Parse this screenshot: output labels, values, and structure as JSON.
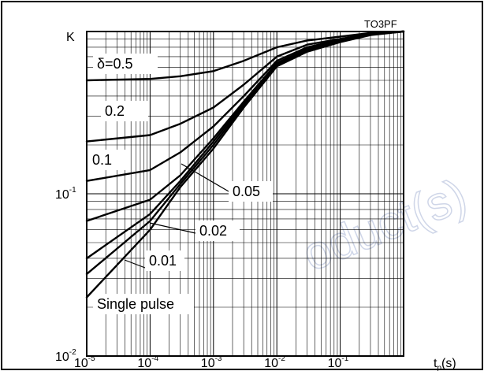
{
  "chart_data": {
    "type": "line",
    "title": "",
    "tag": "TO3PF",
    "ylabel": "K",
    "xlabel_main": "t",
    "xlabel_sub": "p",
    "xlabel_unit": "(s)",
    "x_scale": "log",
    "y_scale": "log",
    "xlim": [
      1e-05,
      1
    ],
    "ylim": [
      0.01,
      1
    ],
    "grid": true,
    "x_ticks": [
      {
        "base": "10",
        "exp": "-5"
      },
      {
        "base": "10",
        "exp": "-4"
      },
      {
        "base": "10",
        "exp": "-3"
      },
      {
        "base": "10",
        "exp": "-2"
      },
      {
        "base": "10",
        "exp": "-1"
      }
    ],
    "y_ticks": [
      {
        "base": "10",
        "exp": "-2"
      },
      {
        "base": "10",
        "exp": "-1"
      }
    ],
    "series": [
      {
        "name": "δ=0.5",
        "x": [
          1e-05,
          0.0001,
          0.0003,
          0.001,
          0.003,
          0.01,
          0.03,
          0.1,
          0.3,
          1
        ],
        "values": [
          0.5,
          0.51,
          0.53,
          0.57,
          0.66,
          0.8,
          0.88,
          0.93,
          0.98,
          1.0
        ]
      },
      {
        "name": "0.2",
        "x": [
          1e-05,
          0.0001,
          0.0003,
          0.001,
          0.003,
          0.01,
          0.03,
          0.1,
          0.3,
          1
        ],
        "values": [
          0.21,
          0.23,
          0.27,
          0.34,
          0.47,
          0.7,
          0.83,
          0.9,
          0.97,
          1.0
        ]
      },
      {
        "name": "0.1",
        "x": [
          1e-05,
          0.0001,
          0.0003,
          0.001,
          0.003,
          0.01,
          0.03,
          0.1,
          0.3,
          1
        ],
        "values": [
          0.12,
          0.14,
          0.18,
          0.26,
          0.4,
          0.66,
          0.8,
          0.89,
          0.97,
          1.0
        ]
      },
      {
        "name": "0.05",
        "x": [
          1e-05,
          0.0001,
          0.0003,
          0.001,
          0.003,
          0.01,
          0.03,
          0.1,
          0.3,
          1
        ],
        "values": [
          0.068,
          0.092,
          0.13,
          0.22,
          0.37,
          0.64,
          0.78,
          0.88,
          0.96,
          1.0
        ]
      },
      {
        "name": "0.02",
        "x": [
          1e-05,
          0.0001,
          0.0003,
          0.001,
          0.003,
          0.01,
          0.03,
          0.1,
          0.3,
          1
        ],
        "values": [
          0.04,
          0.075,
          0.12,
          0.21,
          0.36,
          0.63,
          0.77,
          0.87,
          0.96,
          1.0
        ]
      },
      {
        "name": "0.01",
        "x": [
          1e-05,
          0.0001,
          0.0003,
          0.001,
          0.003,
          0.01,
          0.03,
          0.1,
          0.3,
          1
        ],
        "values": [
          0.032,
          0.068,
          0.115,
          0.2,
          0.35,
          0.62,
          0.76,
          0.87,
          0.96,
          1.0
        ]
      },
      {
        "name": "Single pulse",
        "x": [
          1e-05,
          0.0001,
          0.0003,
          0.001,
          0.003,
          0.01,
          0.03,
          0.1,
          0.3,
          1
        ],
        "values": [
          0.023,
          0.06,
          0.11,
          0.19,
          0.34,
          0.61,
          0.75,
          0.86,
          0.95,
          1.0
        ]
      }
    ]
  }
}
